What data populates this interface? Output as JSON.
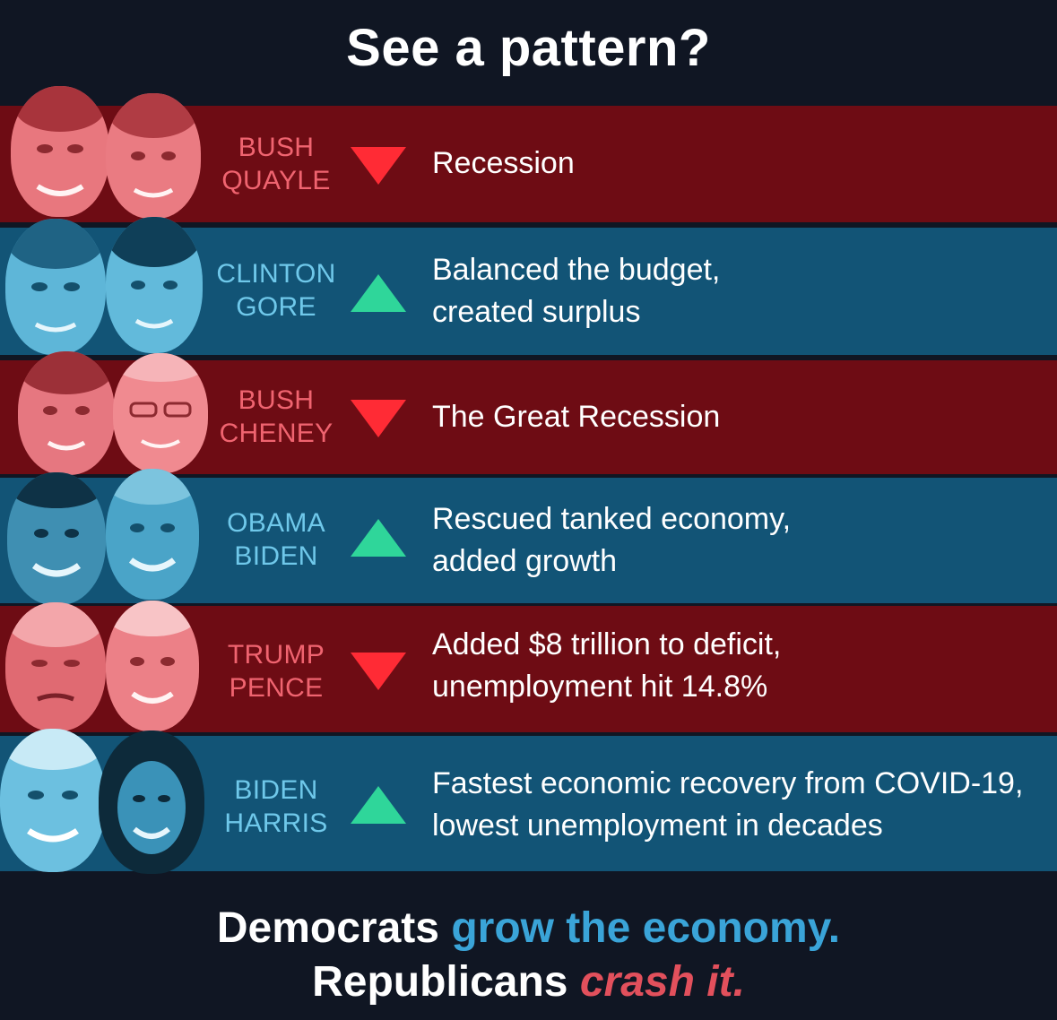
{
  "title": "See a pattern?",
  "rows": [
    {
      "party": "republican",
      "names": [
        "BUSH",
        "QUAYLE"
      ],
      "trend": "down",
      "lines": [
        "Recession"
      ]
    },
    {
      "party": "democrat",
      "names": [
        "CLINTON",
        "GORE"
      ],
      "trend": "up",
      "lines": [
        "Balanced the budget,",
        "created surplus"
      ]
    },
    {
      "party": "republican",
      "names": [
        "BUSH",
        "CHENEY"
      ],
      "trend": "down",
      "lines": [
        "The Great Recession"
      ]
    },
    {
      "party": "democrat",
      "names": [
        "OBAMA",
        "BIDEN"
      ],
      "trend": "up",
      "lines": [
        "Rescued tanked economy,",
        "added growth"
      ]
    },
    {
      "party": "republican",
      "names": [
        "TRUMP",
        "PENCE"
      ],
      "trend": "down",
      "lines": [
        "Added $8 trillion to deficit,",
        "unemployment hit 14.8%"
      ]
    },
    {
      "party": "democrat",
      "names": [
        "BIDEN",
        "HARRIS"
      ],
      "trend": "up",
      "lines": [
        "Fastest economic recovery from COVID-19,",
        "lowest unemployment in decades"
      ]
    }
  ],
  "footer": {
    "line1_part1": "Democrats",
    "line1_part2": "grow the economy.",
    "line2_part1": "Republicans",
    "line2_part2": "crash it."
  },
  "colors": {
    "red_band": "#6e0c14",
    "blue_band": "#125476",
    "down_arrow": "#ff2b35",
    "up_arrow": "#2fd69a",
    "background": "#101623"
  },
  "icons": {
    "down": "triangle-down-icon",
    "up": "triangle-up-icon"
  }
}
